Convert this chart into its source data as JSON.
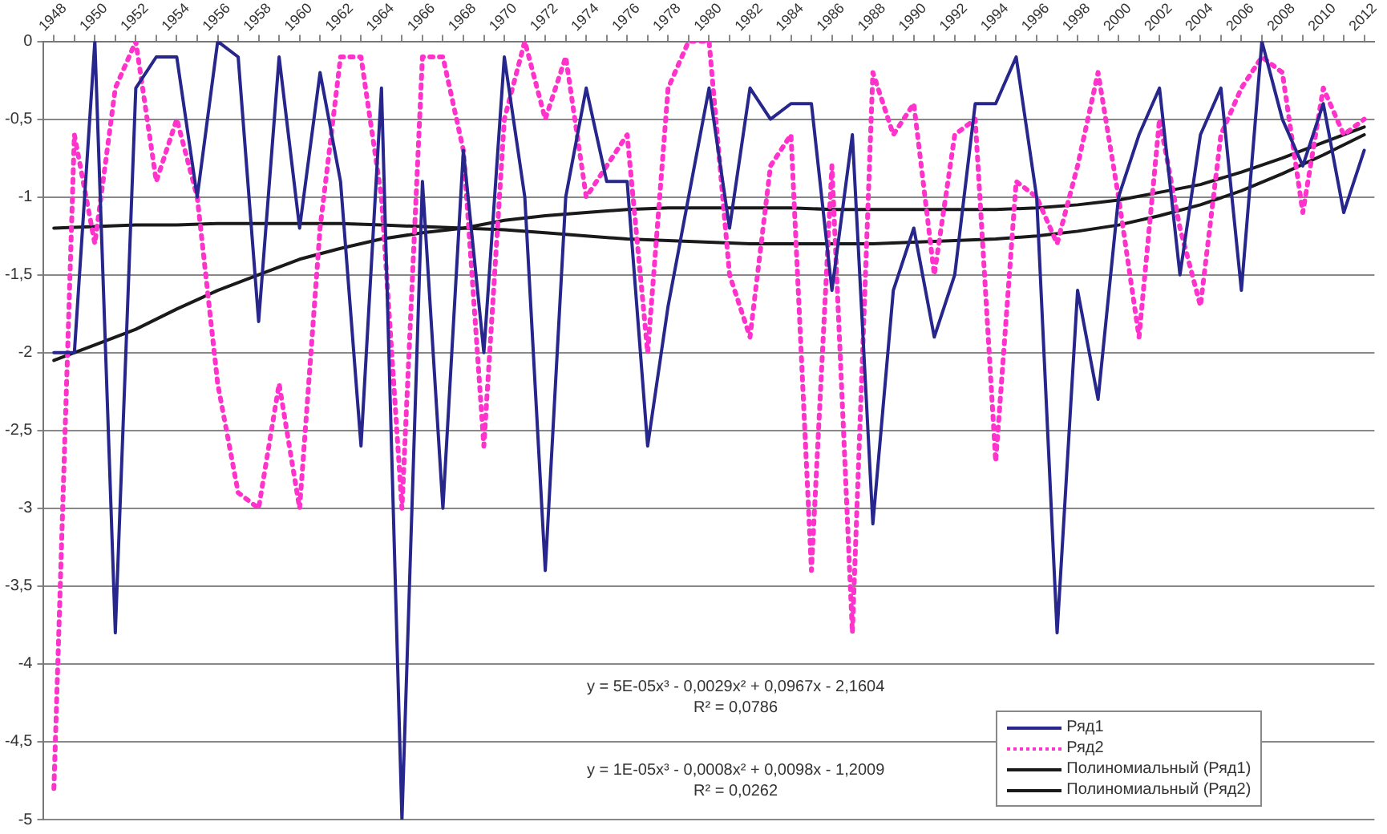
{
  "chart_data": {
    "type": "line",
    "categories": [
      "1948",
      null,
      "1950",
      null,
      "1952",
      null,
      "1954",
      null,
      "1956",
      null,
      "1958",
      null,
      "1960",
      null,
      "1962",
      null,
      "1964",
      null,
      "1966",
      null,
      "1968",
      null,
      "1970",
      null,
      "1972",
      null,
      "1974",
      null,
      "1976",
      null,
      "1978",
      null,
      "1980",
      null,
      "1982",
      null,
      "1984",
      null,
      "1986",
      null,
      "1988",
      null,
      "1990",
      null,
      "1992",
      null,
      "1994",
      null,
      "1996",
      null,
      "1998",
      null,
      "2000",
      null,
      "2002",
      null,
      "2004",
      null,
      "2006",
      null,
      "2008",
      null,
      "2010",
      null,
      "2012"
    ],
    "series": [
      {
        "name": "Ряд1",
        "color": "#26268c",
        "line_style": "solid",
        "values": [
          -2.0,
          -2.0,
          0,
          -3.8,
          -0.3,
          -0.1,
          -0.1,
          -1.0,
          0,
          -0.1,
          -1.8,
          -0.1,
          -1.2,
          -0.2,
          -0.9,
          -2.6,
          -0.3,
          -5.0,
          -0.9,
          -3.0,
          -0.7,
          -2.0,
          -0.1,
          -1.0,
          -3.4,
          -1.0,
          -0.3,
          -0.9,
          -0.9,
          -2.6,
          -1.7,
          -1.0,
          -0.3,
          -1.2,
          -0.3,
          -0.5,
          -0.4,
          -0.4,
          -1.6,
          -0.6,
          -3.1,
          -1.6,
          -1.2,
          -1.9,
          -1.5,
          -0.4,
          -0.4,
          -0.1,
          -1.0,
          -3.8,
          -1.6,
          -2.3,
          -1.0,
          -0.6,
          -0.3,
          -1.5,
          -0.6,
          -0.3,
          -1.6,
          0,
          -0.5,
          -0.8,
          -0.4,
          -1.1,
          -0.7
        ]
      },
      {
        "name": "Ряд2",
        "color": "#ff33cc",
        "line_style": "dotted",
        "values": [
          -4.8,
          -0.6,
          -1.3,
          -0.3,
          0,
          -0.9,
          -0.5,
          -1.0,
          -2.2,
          -2.9,
          -3.0,
          -2.2,
          -3.0,
          -1.2,
          -0.1,
          -0.1,
          -1.0,
          -3.0,
          -0.1,
          -0.1,
          -0.7,
          -2.6,
          -0.5,
          0,
          -0.5,
          -0.1,
          -1.0,
          -0.8,
          -0.6,
          -2.0,
          -0.3,
          0,
          0,
          -1.5,
          -1.9,
          -0.8,
          -0.6,
          -3.4,
          -0.8,
          -3.8,
          -0.2,
          -0.6,
          -0.4,
          -1.5,
          -0.6,
          -0.5,
          -2.7,
          -0.9,
          -1.0,
          -1.3,
          -0.8,
          -0.2,
          -1.0,
          -1.9,
          -0.5,
          -1.2,
          -1.7,
          -0.6,
          -0.3,
          -0.1,
          -0.2,
          -1.1,
          -0.3,
          -0.6,
          -0.5
        ]
      },
      {
        "name": "Полиномиальный (Ряд1)",
        "color": "#1a1a1a",
        "line_style": "solid",
        "values": [
          -2.05,
          null,
          -1.95,
          null,
          -1.85,
          null,
          -1.72,
          null,
          -1.6,
          null,
          -1.5,
          null,
          -1.4,
          null,
          -1.33,
          null,
          -1.27,
          null,
          -1.23,
          null,
          -1.2,
          null,
          -1.15,
          null,
          -1.12,
          null,
          -1.1,
          null,
          -1.08,
          null,
          -1.07,
          null,
          -1.07,
          null,
          -1.07,
          null,
          -1.07,
          null,
          -1.08,
          null,
          -1.08,
          null,
          -1.08,
          null,
          -1.08,
          null,
          -1.08,
          null,
          -1.07,
          null,
          -1.05,
          null,
          -1.02,
          null,
          -0.97,
          null,
          -0.92,
          null,
          -0.84,
          null,
          -0.75,
          null,
          -0.65,
          null,
          -0.55
        ]
      },
      {
        "name": "Полиномиальный (Ряд2)",
        "color": "#1a1a1a",
        "line_style": "solid",
        "values": [
          -1.2,
          null,
          -1.19,
          null,
          -1.18,
          null,
          -1.18,
          null,
          -1.17,
          null,
          -1.17,
          null,
          -1.17,
          null,
          -1.17,
          null,
          -1.18,
          null,
          -1.19,
          null,
          -1.2,
          null,
          -1.21,
          null,
          -1.23,
          null,
          -1.25,
          null,
          -1.27,
          null,
          -1.28,
          null,
          -1.29,
          null,
          -1.3,
          null,
          -1.3,
          null,
          -1.3,
          null,
          -1.3,
          null,
          -1.29,
          null,
          -1.28,
          null,
          -1.27,
          null,
          -1.25,
          null,
          -1.22,
          null,
          -1.18,
          null,
          -1.12,
          null,
          -1.05,
          null,
          -0.96,
          null,
          -0.85,
          null,
          -0.73,
          null,
          -0.6
        ]
      }
    ],
    "ylim": [
      -5,
      0
    ],
    "yticks": [
      0,
      {
        "value": -0.5,
        "label": "-0,5"
      },
      -1,
      {
        "value": -1.5,
        "label": "-1,5"
      },
      -2,
      {
        "value": -2.5,
        "label": "-2,5"
      },
      -3,
      {
        "value": -3.5,
        "label": "-3,5"
      },
      -4,
      {
        "value": -4.5,
        "label": "-4,5"
      },
      -5
    ],
    "grid": "y",
    "legend": "bottom right",
    "marker": "none",
    "annotations": [
      "y = 5E-05x³ - 0,0029x² + 0,0967x - 2,1604",
      "R² = 0,0786",
      "y = 1E-05x³ - 0,0008x² + 0,0098x - 1,2009",
      "R² = 0,0262"
    ]
  }
}
